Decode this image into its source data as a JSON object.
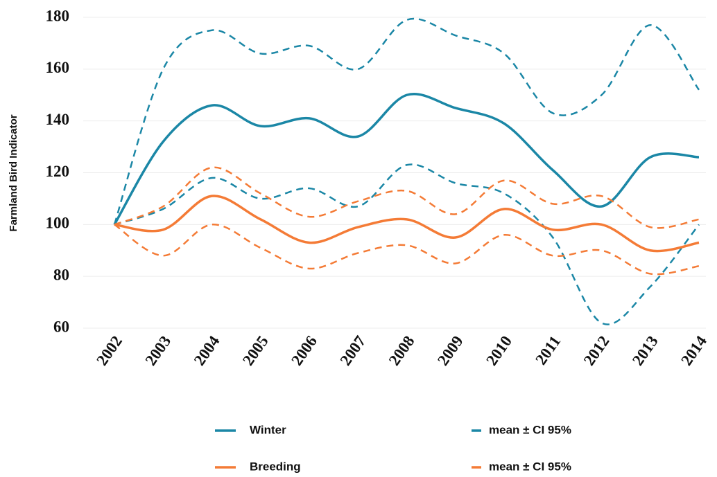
{
  "chart_data": {
    "type": "line",
    "y_label": "Farmland Bird Indicator",
    "categories": [
      "2002",
      "2003",
      "2004",
      "2005",
      "2006",
      "2007",
      "2008",
      "2009",
      "2010",
      "2011",
      "2012",
      "2013",
      "2014"
    ],
    "ylim": [
      60,
      180
    ],
    "yticks": [
      60,
      80,
      100,
      120,
      140,
      160,
      180
    ],
    "grid": true,
    "series": [
      {
        "name": "Winter",
        "color": "#1b87a6",
        "values": [
          100,
          132,
          146,
          138,
          141,
          134,
          150,
          145,
          139,
          121,
          107,
          126,
          126
        ]
      },
      {
        "name": "mean ± CI 95%",
        "color": "#1b87a6",
        "dashed": true,
        "upper": [
          100,
          160,
          175,
          166,
          169,
          160,
          179,
          173,
          166,
          143,
          150,
          177,
          152
        ],
        "lower": [
          100,
          106,
          118,
          110,
          114,
          107,
          123,
          116,
          112,
          95,
          62,
          76,
          100
        ]
      },
      {
        "name": "Breeding",
        "color": "#f47b36",
        "values": [
          100,
          98,
          111,
          102,
          93,
          99,
          102,
          95,
          106,
          98,
          100,
          90,
          93
        ]
      },
      {
        "name": "mean ± CI 95%",
        "color": "#f47b36",
        "dashed": true,
        "upper": [
          100,
          107,
          122,
          112,
          103,
          109,
          113,
          104,
          117,
          108,
          111,
          99,
          102
        ],
        "lower": [
          100,
          88,
          100,
          91,
          83,
          89,
          92,
          85,
          96,
          88,
          90,
          81,
          84
        ]
      }
    ]
  }
}
